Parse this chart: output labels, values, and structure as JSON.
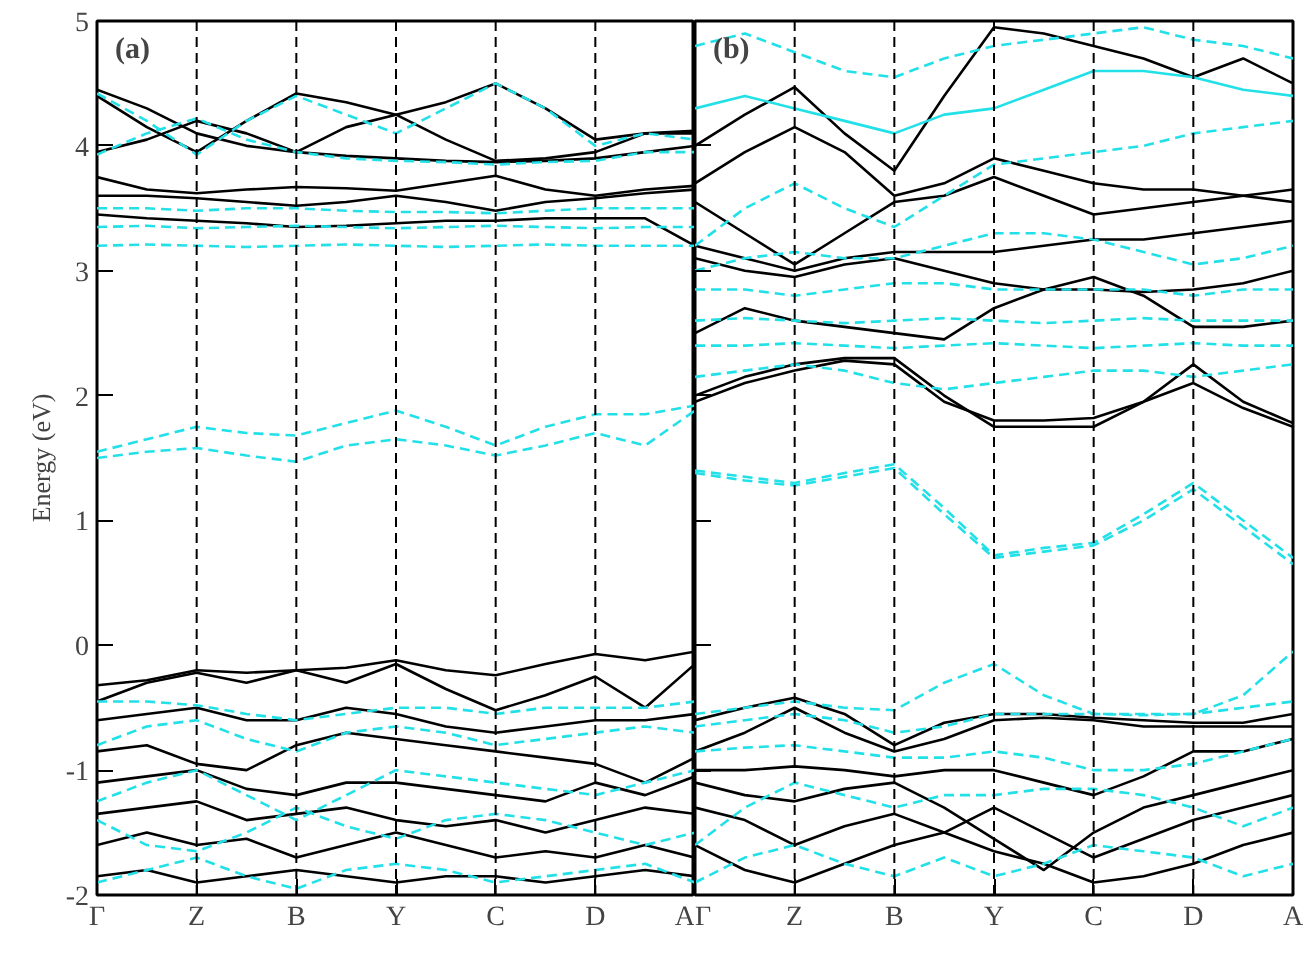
{
  "chart_data": [
    {
      "type": "line",
      "ylabel": "Energy (eV)",
      "annotations": [
        "(a)"
      ],
      "categories": [
        "Γ",
        null,
        "Z",
        null,
        "B",
        null,
        "Y",
        null,
        "C",
        null,
        "D",
        null,
        "A"
      ],
      "ylim": [
        -2,
        5
      ],
      "yticks": [
        -2,
        -1,
        0,
        1,
        2,
        3,
        4,
        5
      ],
      "grid": false,
      "ref_lines": [
        {
          "axis": "x",
          "value": "Z",
          "color": "#000000",
          "line_style": "dashed"
        },
        {
          "axis": "x",
          "value": "B",
          "color": "#000000",
          "line_style": "dashed"
        },
        {
          "axis": "x",
          "value": "Y",
          "color": "#000000",
          "line_style": "dashed"
        },
        {
          "axis": "x",
          "value": "C",
          "color": "#000000",
          "line_style": "dashed"
        },
        {
          "axis": "x",
          "value": "D",
          "color": "#000000",
          "line_style": "dashed"
        }
      ],
      "series": [
        {
          "color": "#000000",
          "line_style": "solid",
          "values": [
            4.45,
            4.3,
            4.1,
            4.0,
            3.95,
            3.92,
            3.9,
            3.88,
            3.87,
            3.88,
            3.9,
            3.95,
            4.0
          ]
        },
        {
          "color": "#000000",
          "line_style": "solid",
          "values": [
            4.4,
            4.15,
            3.95,
            4.2,
            4.42,
            4.35,
            4.25,
            4.35,
            4.5,
            4.3,
            4.05,
            4.1,
            4.1
          ]
        },
        {
          "color": "#000000",
          "line_style": "solid",
          "values": [
            3.95,
            4.05,
            4.2,
            4.1,
            3.95,
            4.15,
            4.25,
            4.05,
            3.88,
            3.9,
            3.95,
            4.1,
            4.12
          ]
        },
        {
          "color": "#000000",
          "line_style": "solid",
          "values": [
            3.75,
            3.65,
            3.62,
            3.65,
            3.67,
            3.66,
            3.64,
            3.7,
            3.76,
            3.65,
            3.6,
            3.65,
            3.68
          ]
        },
        {
          "color": "#000000",
          "line_style": "solid",
          "values": [
            3.6,
            3.6,
            3.58,
            3.55,
            3.52,
            3.55,
            3.6,
            3.55,
            3.48,
            3.55,
            3.58,
            3.62,
            3.65
          ]
        },
        {
          "color": "#000000",
          "line_style": "solid",
          "values": [
            3.45,
            3.42,
            3.4,
            3.38,
            3.35,
            3.36,
            3.38,
            3.4,
            3.4,
            3.42,
            3.42,
            3.42,
            3.2
          ]
        },
        {
          "color": "#000000",
          "line_style": "solid",
          "values": [
            -0.32,
            -0.28,
            -0.2,
            -0.22,
            -0.2,
            -0.18,
            -0.12,
            -0.2,
            -0.24,
            -0.15,
            -0.07,
            -0.12,
            -0.05
          ]
        },
        {
          "color": "#000000",
          "line_style": "solid",
          "values": [
            -0.45,
            -0.3,
            -0.22,
            -0.3,
            -0.2,
            -0.3,
            -0.15,
            -0.35,
            -0.52,
            -0.4,
            -0.25,
            -0.5,
            -0.15
          ]
        },
        {
          "color": "#000000",
          "line_style": "solid",
          "values": [
            -0.6,
            -0.55,
            -0.5,
            -0.6,
            -0.6,
            -0.5,
            -0.55,
            -0.65,
            -0.7,
            -0.65,
            -0.6,
            -0.6,
            -0.55
          ]
        },
        {
          "color": "#000000",
          "line_style": "solid",
          "values": [
            -0.85,
            -0.8,
            -0.95,
            -1.0,
            -0.8,
            -0.7,
            -0.75,
            -0.8,
            -0.85,
            -0.9,
            -0.95,
            -1.1,
            -0.9
          ]
        },
        {
          "color": "#000000",
          "line_style": "solid",
          "values": [
            -1.1,
            -1.05,
            -1.0,
            -1.15,
            -1.2,
            -1.1,
            -1.1,
            -1.15,
            -1.2,
            -1.25,
            -1.1,
            -1.2,
            -1.05
          ]
        },
        {
          "color": "#000000",
          "line_style": "solid",
          "values": [
            -1.35,
            -1.3,
            -1.25,
            -1.4,
            -1.35,
            -1.3,
            -1.4,
            -1.45,
            -1.4,
            -1.5,
            -1.4,
            -1.3,
            -1.35
          ]
        },
        {
          "color": "#000000",
          "line_style": "solid",
          "values": [
            -1.6,
            -1.5,
            -1.6,
            -1.55,
            -1.7,
            -1.6,
            -1.5,
            -1.6,
            -1.7,
            -1.65,
            -1.7,
            -1.6,
            -1.7
          ]
        },
        {
          "color": "#000000",
          "line_style": "solid",
          "values": [
            -1.85,
            -1.8,
            -1.9,
            -1.85,
            -1.8,
            -1.85,
            -1.9,
            -1.85,
            -1.85,
            -1.9,
            -1.85,
            -1.8,
            -1.85
          ]
        },
        {
          "color": "#22e0e8",
          "line_style": "dashed",
          "values": [
            4.42,
            4.2,
            3.93,
            4.2,
            4.4,
            4.25,
            4.1,
            4.3,
            4.5,
            4.3,
            4.0,
            4.1,
            4.05
          ]
        },
        {
          "color": "#22e0e8",
          "line_style": "dashed",
          "values": [
            3.93,
            4.1,
            4.22,
            4.05,
            3.95,
            3.9,
            3.88,
            3.87,
            3.85,
            3.87,
            3.88,
            3.95,
            3.95
          ]
        },
        {
          "color": "#22e0e8",
          "line_style": "dashed",
          "values": [
            3.5,
            3.5,
            3.48,
            3.5,
            3.5,
            3.48,
            3.47,
            3.47,
            3.46,
            3.48,
            3.5,
            3.5,
            3.5
          ]
        },
        {
          "color": "#22e0e8",
          "line_style": "dashed",
          "values": [
            3.35,
            3.36,
            3.34,
            3.35,
            3.36,
            3.35,
            3.34,
            3.35,
            3.36,
            3.35,
            3.34,
            3.35,
            3.35
          ]
        },
        {
          "color": "#22e0e8",
          "line_style": "dashed",
          "values": [
            3.2,
            3.21,
            3.2,
            3.19,
            3.2,
            3.21,
            3.2,
            3.19,
            3.2,
            3.21,
            3.2,
            3.2,
            3.2
          ]
        },
        {
          "color": "#22e0e8",
          "line_style": "dashed",
          "values": [
            1.55,
            1.65,
            1.75,
            1.7,
            1.68,
            1.78,
            1.88,
            1.75,
            1.6,
            1.75,
            1.85,
            1.85,
            1.92
          ]
        },
        {
          "color": "#22e0e8",
          "line_style": "dashed",
          "values": [
            1.5,
            1.55,
            1.58,
            1.52,
            1.47,
            1.6,
            1.65,
            1.6,
            1.52,
            1.6,
            1.7,
            1.6,
            1.88
          ]
        },
        {
          "color": "#22e0e8",
          "line_style": "dashed",
          "values": [
            -0.45,
            -0.45,
            -0.48,
            -0.55,
            -0.6,
            -0.55,
            -0.5,
            -0.5,
            -0.55,
            -0.5,
            -0.5,
            -0.5,
            -0.45
          ]
        },
        {
          "color": "#22e0e8",
          "line_style": "dashed",
          "values": [
            -0.8,
            -0.65,
            -0.6,
            -0.75,
            -0.85,
            -0.7,
            -0.65,
            -0.7,
            -0.8,
            -0.75,
            -0.7,
            -0.65,
            -0.7
          ]
        },
        {
          "color": "#22e0e8",
          "line_style": "dashed",
          "values": [
            -1.25,
            -1.1,
            -1.0,
            -1.2,
            -1.4,
            -1.2,
            -1.0,
            -1.05,
            -1.1,
            -1.15,
            -1.2,
            -1.1,
            -1.0
          ]
        },
        {
          "color": "#22e0e8",
          "line_style": "dashed",
          "values": [
            -1.4,
            -1.6,
            -1.65,
            -1.5,
            -1.3,
            -1.45,
            -1.55,
            -1.4,
            -1.35,
            -1.4,
            -1.5,
            -1.6,
            -1.5
          ]
        },
        {
          "color": "#22e0e8",
          "line_style": "dashed",
          "values": [
            -1.9,
            -1.8,
            -1.7,
            -1.85,
            -1.95,
            -1.8,
            -1.75,
            -1.8,
            -1.9,
            -1.85,
            -1.8,
            -1.75,
            -1.9
          ]
        }
      ]
    },
    {
      "type": "line",
      "annotations": [
        "(b)"
      ],
      "tick_labels": "x",
      "categories": [
        "Γ",
        null,
        "Z",
        null,
        "B",
        null,
        "Y",
        null,
        "C",
        null,
        "D",
        null,
        "A"
      ],
      "ylim": [
        -2,
        5
      ],
      "yticks": [
        {
          "value": -2,
          "label": null
        },
        {
          "value": -1,
          "label": null
        },
        {
          "value": 0,
          "label": null
        },
        {
          "value": 1,
          "label": null
        },
        {
          "value": 2,
          "label": null
        },
        {
          "value": 3,
          "label": null
        },
        {
          "value": 4,
          "label": null
        },
        {
          "value": 5,
          "label": null
        }
      ],
      "grid": false,
      "ref_lines": [
        {
          "axis": "x",
          "value": "Z",
          "color": "#000000",
          "line_style": "dashed"
        },
        {
          "axis": "x",
          "value": "B",
          "color": "#000000",
          "line_style": "dashed"
        },
        {
          "axis": "x",
          "value": "Y",
          "color": "#000000",
          "line_style": "dashed"
        },
        {
          "axis": "x",
          "value": "C",
          "color": "#000000",
          "line_style": "dashed"
        },
        {
          "axis": "x",
          "value": "D",
          "color": "#000000",
          "line_style": "dashed"
        }
      ],
      "series": [
        {
          "color": "#000000",
          "line_style": "solid",
          "values": [
            4.0,
            4.25,
            4.47,
            4.1,
            3.8,
            4.4,
            4.95,
            4.9,
            4.8,
            4.7,
            4.55,
            4.7,
            4.5
          ]
        },
        {
          "color": "#000000",
          "line_style": "solid",
          "values": [
            3.7,
            3.95,
            4.15,
            3.95,
            3.6,
            3.7,
            3.9,
            3.8,
            3.7,
            3.65,
            3.65,
            3.6,
            3.55
          ]
        },
        {
          "color": "#000000",
          "line_style": "solid",
          "values": [
            3.55,
            3.3,
            3.05,
            3.3,
            3.55,
            3.6,
            3.75,
            3.6,
            3.45,
            3.5,
            3.55,
            3.6,
            3.65
          ]
        },
        {
          "color": "#000000",
          "line_style": "solid",
          "values": [
            3.2,
            3.1,
            3.0,
            3.1,
            3.15,
            3.15,
            3.15,
            3.2,
            3.25,
            3.25,
            3.3,
            3.35,
            3.4
          ]
        },
        {
          "color": "#000000",
          "line_style": "solid",
          "values": [
            3.1,
            3.0,
            2.95,
            3.05,
            3.1,
            3.0,
            2.9,
            2.85,
            2.85,
            2.83,
            2.85,
            2.9,
            3.0
          ]
        },
        {
          "color": "#000000",
          "line_style": "solid",
          "values": [
            2.5,
            2.7,
            2.6,
            2.55,
            2.5,
            2.45,
            2.7,
            2.85,
            2.95,
            2.8,
            2.55,
            2.55,
            2.6
          ]
        },
        {
          "color": "#000000",
          "line_style": "solid",
          "values": [
            2.0,
            2.15,
            2.25,
            2.3,
            2.3,
            2.0,
            1.75,
            1.75,
            1.75,
            1.95,
            2.25,
            1.95,
            1.78
          ]
        },
        {
          "color": "#000000",
          "line_style": "solid",
          "values": [
            1.95,
            2.1,
            2.2,
            2.28,
            2.25,
            1.95,
            1.8,
            1.8,
            1.82,
            1.95,
            2.1,
            1.9,
            1.75
          ]
        },
        {
          "color": "#000000",
          "line_style": "solid",
          "values": [
            -0.6,
            -0.5,
            -0.42,
            -0.55,
            -0.8,
            -0.62,
            -0.55,
            -0.55,
            -0.58,
            -0.6,
            -0.62,
            -0.62,
            -0.55
          ]
        },
        {
          "color": "#000000",
          "line_style": "solid",
          "values": [
            -0.85,
            -0.7,
            -0.5,
            -0.7,
            -0.85,
            -0.75,
            -0.6,
            -0.58,
            -0.6,
            -0.65,
            -0.65,
            -0.65,
            -0.65
          ]
        },
        {
          "color": "#000000",
          "line_style": "solid",
          "values": [
            -1.0,
            -1.0,
            -0.97,
            -1.0,
            -1.05,
            -1.0,
            -1.0,
            -1.1,
            -1.2,
            -1.05,
            -0.85,
            -0.85,
            -0.75
          ]
        },
        {
          "color": "#000000",
          "line_style": "solid",
          "values": [
            -1.1,
            -1.2,
            -1.25,
            -1.15,
            -1.1,
            -1.3,
            -1.55,
            -1.8,
            -1.5,
            -1.3,
            -1.2,
            -1.1,
            -1.0
          ]
        },
        {
          "color": "#000000",
          "line_style": "solid",
          "values": [
            -1.3,
            -1.4,
            -1.6,
            -1.45,
            -1.35,
            -1.5,
            -1.3,
            -1.5,
            -1.7,
            -1.55,
            -1.4,
            -1.3,
            -1.2
          ]
        },
        {
          "color": "#000000",
          "line_style": "solid",
          "values": [
            -1.6,
            -1.8,
            -1.9,
            -1.75,
            -1.6,
            -1.5,
            -1.65,
            -1.75,
            -1.9,
            -1.85,
            -1.75,
            -1.6,
            -1.5
          ]
        },
        {
          "color": "#22e0e8",
          "line_style": "dashed",
          "values": [
            4.8,
            4.9,
            4.75,
            4.6,
            4.55,
            4.7,
            4.8,
            4.85,
            4.9,
            4.95,
            4.85,
            4.8,
            4.7
          ]
        },
        {
          "color": "#22e0e8",
          "line_style": "solid",
          "values": [
            4.3,
            4.4,
            4.3,
            4.2,
            4.1,
            4.25,
            4.3,
            4.45,
            4.6,
            4.6,
            4.55,
            4.45,
            4.4
          ]
        },
        {
          "color": "#22e0e8",
          "line_style": "dashed",
          "values": [
            3.2,
            3.5,
            3.7,
            3.5,
            3.35,
            3.6,
            3.85,
            3.9,
            3.95,
            4.0,
            4.1,
            4.15,
            4.2
          ]
        },
        {
          "color": "#22e0e8",
          "line_style": "dashed",
          "values": [
            3.0,
            3.1,
            3.15,
            3.1,
            3.1,
            3.2,
            3.3,
            3.3,
            3.25,
            3.15,
            3.05,
            3.1,
            3.2
          ]
        },
        {
          "color": "#22e0e8",
          "line_style": "dashed",
          "values": [
            2.85,
            2.85,
            2.8,
            2.85,
            2.9,
            2.9,
            2.85,
            2.85,
            2.85,
            2.85,
            2.8,
            2.85,
            2.85
          ]
        },
        {
          "color": "#22e0e8",
          "line_style": "dashed",
          "values": [
            2.6,
            2.62,
            2.6,
            2.58,
            2.6,
            2.62,
            2.6,
            2.58,
            2.6,
            2.62,
            2.6,
            2.6,
            2.6
          ]
        },
        {
          "color": "#22e0e8",
          "line_style": "dashed",
          "values": [
            2.4,
            2.4,
            2.42,
            2.4,
            2.38,
            2.4,
            2.42,
            2.4,
            2.38,
            2.4,
            2.42,
            2.4,
            2.4
          ]
        },
        {
          "color": "#22e0e8",
          "line_style": "dashed",
          "values": [
            2.15,
            2.2,
            2.25,
            2.2,
            2.1,
            2.05,
            2.1,
            2.15,
            2.2,
            2.2,
            2.15,
            2.2,
            2.25
          ]
        },
        {
          "color": "#22e0e8",
          "line_style": "dashed",
          "values": [
            1.4,
            1.35,
            1.3,
            1.38,
            1.45,
            1.1,
            0.72,
            0.78,
            0.82,
            1.05,
            1.3,
            1.0,
            0.7
          ]
        },
        {
          "color": "#22e0e8",
          "line_style": "dashed",
          "values": [
            1.38,
            1.32,
            1.28,
            1.35,
            1.42,
            1.05,
            0.7,
            0.75,
            0.8,
            1.0,
            1.25,
            0.95,
            0.65
          ]
        },
        {
          "color": "#22e0e8",
          "line_style": "dashed",
          "values": [
            -0.55,
            -0.5,
            -0.45,
            -0.5,
            -0.52,
            -0.3,
            -0.15,
            -0.4,
            -0.55,
            -0.55,
            -0.55,
            -0.4,
            -0.05
          ]
        },
        {
          "color": "#22e0e8",
          "line_style": "dashed",
          "values": [
            -0.65,
            -0.6,
            -0.55,
            -0.6,
            -0.7,
            -0.65,
            -0.55,
            -0.55,
            -0.55,
            -0.56,
            -0.55,
            -0.5,
            -0.45
          ]
        },
        {
          "color": "#22e0e8",
          "line_style": "dashed",
          "values": [
            -0.85,
            -0.82,
            -0.8,
            -0.85,
            -0.9,
            -0.9,
            -0.85,
            -0.9,
            -1.0,
            -1.0,
            -0.95,
            -0.85,
            -0.75
          ]
        },
        {
          "color": "#22e0e8",
          "line_style": "dashed",
          "values": [
            -1.6,
            -1.3,
            -1.1,
            -1.2,
            -1.3,
            -1.2,
            -1.2,
            -1.15,
            -1.15,
            -1.2,
            -1.3,
            -1.45,
            -1.3
          ]
        },
        {
          "color": "#22e0e8",
          "line_style": "dashed",
          "values": [
            -1.9,
            -1.7,
            -1.6,
            -1.75,
            -1.85,
            -1.7,
            -1.85,
            -1.75,
            -1.6,
            -1.65,
            -1.7,
            -1.85,
            -1.75
          ]
        }
      ]
    }
  ]
}
